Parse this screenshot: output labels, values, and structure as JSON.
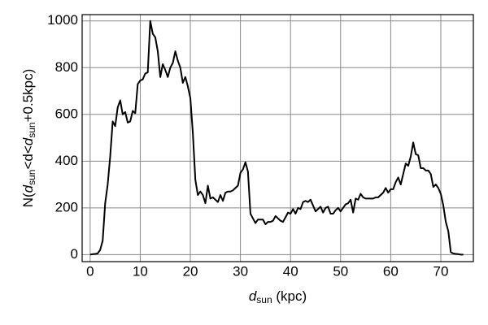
{
  "chart_data": {
    "type": "line",
    "x_label": [
      {
        "text": "d",
        "style": "italic"
      },
      {
        "text": "sun",
        "style": "sub"
      },
      {
        "text": " (kpc)",
        "style": "normal"
      }
    ],
    "y_label": [
      {
        "text": "N(",
        "style": "normal"
      },
      {
        "text": "d",
        "style": "italic"
      },
      {
        "text": "sun",
        "style": "sub"
      },
      {
        "text": "<d<",
        "style": "normal"
      },
      {
        "text": "d",
        "style": "italic"
      },
      {
        "text": "sun",
        "style": "sub"
      },
      {
        "text": "+0.5kpc)",
        "style": "normal"
      }
    ],
    "x": [
      0,
      0.5,
      1,
      1.5,
      2,
      2.5,
      3,
      3.5,
      4,
      4.5,
      5,
      5.5,
      6,
      6.5,
      7,
      7.5,
      8,
      8.5,
      9,
      9.5,
      10,
      10.5,
      11,
      11.5,
      12,
      12.5,
      13,
      13.5,
      14,
      14.5,
      15,
      15.5,
      16,
      16.5,
      17,
      17.5,
      18,
      18.5,
      19,
      19.5,
      20,
      20.5,
      21,
      21.5,
      22,
      22.5,
      23,
      23.5,
      24,
      24.5,
      25,
      25.5,
      26,
      26.5,
      27,
      27.5,
      28,
      28.5,
      29,
      29.5,
      30,
      30.5,
      31,
      31.5,
      32,
      32.5,
      33,
      33.5,
      34,
      34.5,
      35,
      35.5,
      36,
      36.5,
      37,
      37.5,
      38,
      38.5,
      39,
      39.5,
      40,
      40.5,
      41,
      41.5,
      42,
      42.5,
      43,
      43.5,
      44,
      44.5,
      45,
      45.5,
      46,
      46.5,
      47,
      47.5,
      48,
      48.5,
      49,
      49.5,
      50,
      50.5,
      51,
      51.5,
      52,
      52.5,
      53,
      53.5,
      54,
      54.5,
      55,
      55.5,
      56,
      56.5,
      57,
      57.5,
      58,
      58.5,
      59,
      59.5,
      60,
      60.5,
      61,
      61.5,
      62,
      62.5,
      63,
      63.5,
      64,
      64.5,
      65,
      65.5,
      66,
      66.5,
      67,
      67.5,
      68,
      68.5,
      69,
      69.5,
      70,
      70.5,
      71,
      71.5,
      72,
      72.5,
      73,
      73.5,
      74,
      74.5
    ],
    "series": [
      {
        "color": "#000000",
        "values": [
          0,
          2,
          3,
          5,
          20,
          60,
          220,
          300,
          420,
          570,
          550,
          630,
          660,
          600,
          610,
          565,
          570,
          615,
          605,
          730,
          745,
          750,
          775,
          780,
          1000,
          945,
          930,
          870,
          760,
          815,
          790,
          760,
          800,
          820,
          870,
          830,
          800,
          735,
          760,
          720,
          670,
          520,
          320,
          255,
          270,
          255,
          220,
          295,
          240,
          245,
          235,
          225,
          255,
          230,
          265,
          270,
          270,
          275,
          285,
          295,
          350,
          365,
          395,
          355,
          175,
          155,
          135,
          150,
          150,
          150,
          130,
          140,
          140,
          145,
          165,
          155,
          145,
          140,
          160,
          180,
          175,
          195,
          175,
          200,
          195,
          225,
          230,
          225,
          235,
          210,
          185,
          195,
          205,
          180,
          200,
          205,
          175,
          175,
          190,
          200,
          185,
          200,
          215,
          220,
          235,
          180,
          240,
          235,
          260,
          245,
          240,
          240,
          240,
          240,
          245,
          245,
          255,
          265,
          285,
          265,
          280,
          280,
          310,
          330,
          300,
          345,
          390,
          380,
          420,
          480,
          430,
          425,
          370,
          370,
          360,
          360,
          345,
          290,
          300,
          285,
          260,
          210,
          140,
          100,
          10,
          5,
          3,
          2,
          0,
          0
        ]
      }
    ],
    "xlim": [
      -1.6,
      76.5
    ],
    "ylim": [
      -30,
      1027
    ],
    "xticks": [
      0,
      10,
      20,
      30,
      40,
      50,
      60,
      70
    ],
    "yticks": [
      0,
      200,
      400,
      600,
      800,
      1000
    ],
    "grid": true
  }
}
